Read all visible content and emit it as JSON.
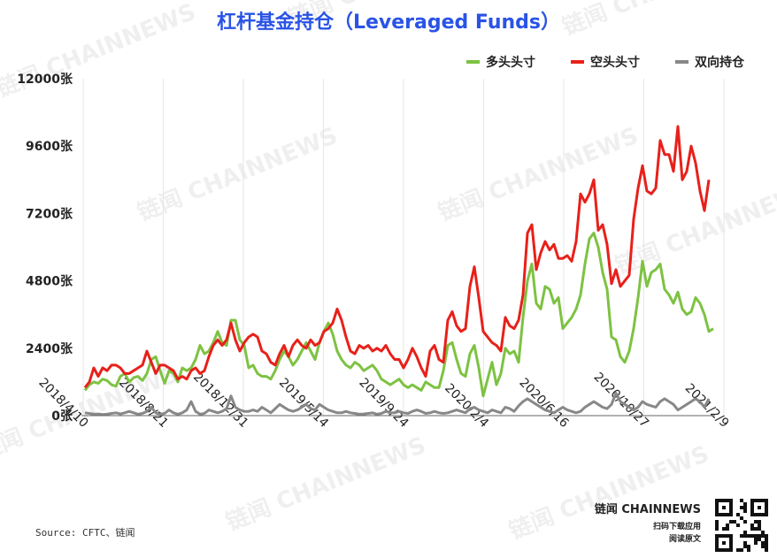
{
  "title": "杠杆基金持仓（Leveraged Funds）",
  "source": "Source: CFTC、链闻",
  "brand": {
    "name": "链闻 CHAINNEWS",
    "line1": "扫码下载应用",
    "line2": "阅读原文"
  },
  "watermark": "链闻 CHAINNEWS",
  "colors": {
    "long": "#7dc242",
    "short": "#e8201a",
    "spread": "#888888",
    "title": "#2a53e6"
  },
  "chart_data": {
    "type": "line",
    "title": "杠杆基金持仓（Leveraged Funds）",
    "legend_position": "top-right",
    "ylim": [
      0,
      12000
    ],
    "yticks": [
      0,
      2400,
      4800,
      7200,
      9600,
      12000
    ],
    "ytick_labels": [
      "0张",
      "2400张",
      "4800张",
      "7200张",
      "9600张",
      "12000张"
    ],
    "xticks": [
      "2018/4/10",
      "2018/8/21",
      "2018/12/31",
      "2019/5/14",
      "2019/9/24",
      "2020/2/4",
      "2020/6/16",
      "2020/10/27",
      "2021/2/9"
    ],
    "grid": "vertical",
    "series": [
      {
        "name": "多头头寸",
        "color": "#7dc242",
        "values": [
          900,
          1100,
          1200,
          1150,
          1300,
          1250,
          1100,
          1050,
          1400,
          1500,
          1200,
          1350,
          1400,
          1250,
          1500,
          2000,
          2100,
          1600,
          1150,
          1600,
          1500,
          1200,
          1700,
          1600,
          1700,
          2000,
          2500,
          2200,
          2300,
          2600,
          3000,
          2600,
          2500,
          3400,
          3400,
          2700,
          2500,
          1700,
          1800,
          1500,
          1400,
          1400,
          1300,
          1600,
          2000,
          2300,
          2100,
          1800,
          2000,
          2300,
          2600,
          2300,
          2000,
          2600,
          3000,
          3300,
          2900,
          2300,
          2000,
          1800,
          1700,
          1900,
          1800,
          1600,
          1700,
          1800,
          1600,
          1300,
          1200,
          1100,
          1200,
          1300,
          1100,
          1000,
          1100,
          1000,
          900,
          1200,
          1100,
          1000,
          1000,
          1600,
          2500,
          2600,
          2000,
          1500,
          1400,
          2200,
          2500,
          1700,
          700,
          1300,
          1900,
          1100,
          1500,
          2400,
          2200,
          2300,
          1900,
          3500,
          4800,
          5400,
          4000,
          3800,
          4600,
          4500,
          4000,
          4200,
          3100,
          3300,
          3500,
          3800,
          4300,
          5400,
          6300,
          6500,
          6000,
          5100,
          4500,
          2800,
          2700,
          2100,
          1900,
          2300,
          3100,
          4200,
          5500,
          4600,
          5100,
          5200,
          5400,
          4500,
          4300,
          4000,
          4400,
          3800,
          3600,
          3700,
          4200,
          4000,
          3600,
          3000,
          3100
        ]
      },
      {
        "name": "空头头寸",
        "color": "#e8201a",
        "values": [
          1000,
          1200,
          1700,
          1400,
          1700,
          1600,
          1800,
          1800,
          1700,
          1500,
          1500,
          1600,
          1700,
          1800,
          2300,
          1900,
          1500,
          1800,
          1800,
          1700,
          1600,
          1300,
          1400,
          1300,
          1600,
          1700,
          1500,
          1600,
          2100,
          2500,
          2700,
          2500,
          2700,
          3300,
          2700,
          2300,
          2600,
          2800,
          2900,
          2800,
          2300,
          2200,
          1900,
          1800,
          2200,
          2500,
          2100,
          2500,
          2700,
          2500,
          2400,
          2700,
          2500,
          2600,
          3000,
          3100,
          3300,
          3800,
          3400,
          2800,
          2300,
          2200,
          2500,
          2400,
          2500,
          2300,
          2400,
          2300,
          2500,
          2200,
          2000,
          2000,
          1700,
          2000,
          2400,
          2100,
          1700,
          1400,
          2300,
          2500,
          2000,
          1900,
          3400,
          3700,
          3200,
          3000,
          3100,
          4600,
          5300,
          4200,
          3000,
          2800,
          2600,
          2500,
          2300,
          3500,
          3200,
          3100,
          3400,
          4300,
          6500,
          6800,
          5200,
          5800,
          6200,
          5900,
          6100,
          5600,
          5600,
          5700,
          5500,
          6200,
          7900,
          7600,
          7900,
          8400,
          6600,
          6800,
          6100,
          4700,
          5200,
          4600,
          4800,
          5000,
          7000,
          8100,
          8900,
          8000,
          7900,
          8100,
          9800,
          9300,
          9300,
          8700,
          10300,
          8400,
          8700,
          9600,
          9000,
          8000,
          7300,
          8400
        ]
      },
      {
        "name": "双向持仓",
        "color": "#888888",
        "values": [
          100,
          80,
          50,
          60,
          40,
          50,
          80,
          100,
          60,
          100,
          150,
          100,
          50,
          80,
          150,
          300,
          100,
          50,
          80,
          200,
          100,
          50,
          100,
          200,
          500,
          150,
          50,
          80,
          200,
          150,
          100,
          150,
          250,
          700,
          300,
          200,
          150,
          150,
          200,
          150,
          300,
          200,
          100,
          250,
          400,
          300,
          200,
          150,
          200,
          300,
          400,
          250,
          200,
          400,
          300,
          200,
          150,
          100,
          100,
          150,
          100,
          80,
          50,
          60,
          80,
          100,
          50,
          80,
          150,
          100,
          100,
          150,
          100,
          80,
          150,
          200,
          150,
          80,
          100,
          150,
          100,
          80,
          100,
          150,
          200,
          150,
          100,
          250,
          300,
          200,
          150,
          100,
          200,
          150,
          100,
          300,
          250,
          150,
          350,
          500,
          600,
          500,
          400,
          300,
          200,
          150,
          100,
          200,
          300,
          200,
          150,
          100,
          150,
          300,
          400,
          500,
          400,
          300,
          250,
          400,
          800,
          500,
          400,
          300,
          200,
          300,
          500,
          400,
          350,
          300,
          500,
          600,
          500,
          400,
          200,
          300,
          400,
          500,
          600,
          500,
          300,
          600
        ]
      }
    ]
  }
}
